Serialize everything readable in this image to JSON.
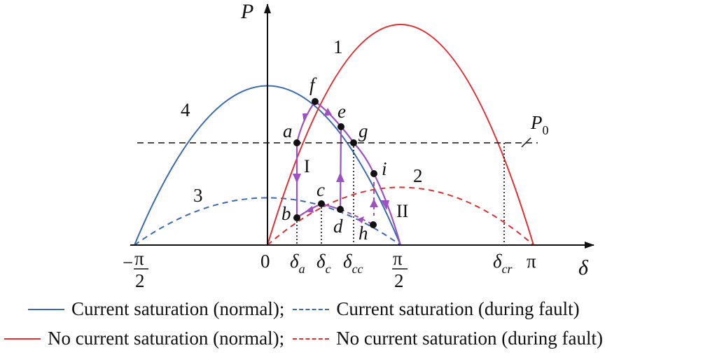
{
  "axes": {
    "y_label": "P",
    "x_label": "δ",
    "p0_label": "P",
    "p0_sub": "0",
    "ticks": {
      "neg_half_pi_sign": "−",
      "neg_half_pi_num": "π",
      "neg_half_pi_den": "2",
      "zero": "0",
      "delta_a_main": "δ",
      "delta_a_sub": "a",
      "delta_c_main": "δ",
      "delta_c_sub": "c",
      "delta_cc_main": "δ",
      "delta_cc_sub": "cc",
      "half_pi_num": "π",
      "half_pi_den": "2",
      "delta_cr_main": "δ",
      "delta_cr_sub": "cr",
      "pi": "π"
    }
  },
  "curve_labels": {
    "c1": "1",
    "c2": "2",
    "c3": "3",
    "c4": "4"
  },
  "points": {
    "a": "a",
    "b": "b",
    "c": "c",
    "d": "d",
    "e": "e",
    "f": "f",
    "g": "g",
    "h": "h",
    "i": "i"
  },
  "region_labels": {
    "I": "I",
    "II": "II"
  },
  "colors": {
    "blue": "#3a6ab0",
    "red": "#e03034",
    "purple": "#a050c0",
    "axis": "#111111"
  },
  "legend": {
    "row1_left": "Current saturation (normal);",
    "row1_right": "Current saturation (during fault)",
    "row2_left": "No current saturation (normal);",
    "row2_right": "No current saturation (during fault)"
  }
}
